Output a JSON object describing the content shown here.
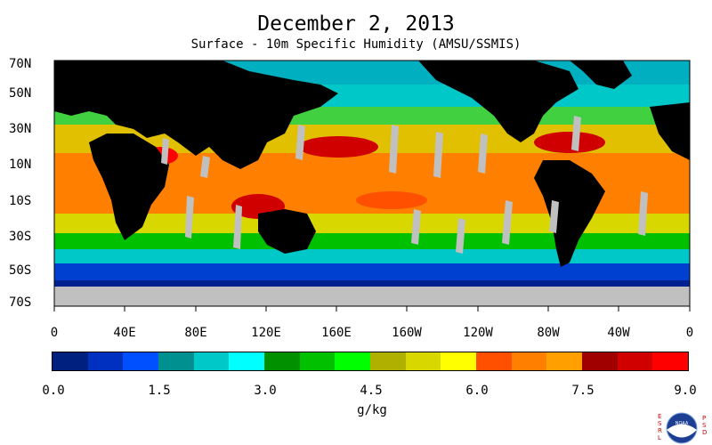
{
  "title": "December 2, 2013",
  "subtitle": "Surface - 10m Specific Humidity (AMSU/SSMIS)",
  "lat_labels": [
    "70N",
    "50N",
    "30N",
    "10N",
    "10S",
    "30S",
    "50S",
    "70S"
  ],
  "lon_labels": [
    "0",
    "40E",
    "80E",
    "120E",
    "160E",
    "160W",
    "120W",
    "80W",
    "40W",
    "0"
  ],
  "colorbar": {
    "colors": [
      "#00207f",
      "#0030c0",
      "#0050ff",
      "#009090",
      "#00c8c8",
      "#00ffff",
      "#009000",
      "#00c000",
      "#00ff00",
      "#b0b000",
      "#d8d800",
      "#ffff00",
      "#ff5000",
      "#ff8000",
      "#ffa000",
      "#a00000",
      "#d00000",
      "#ff0000"
    ],
    "ticks": [
      "0.0",
      "1.5",
      "3.0",
      "4.5",
      "6.0",
      "7.5",
      "9.0"
    ],
    "unit": "g/kg"
  },
  "colors": {
    "land": "#000000",
    "missing": "#c0c0c0"
  },
  "logo": {
    "left_text": "ESRL",
    "right_text": "PSD",
    "center_text": "NOAA"
  }
}
